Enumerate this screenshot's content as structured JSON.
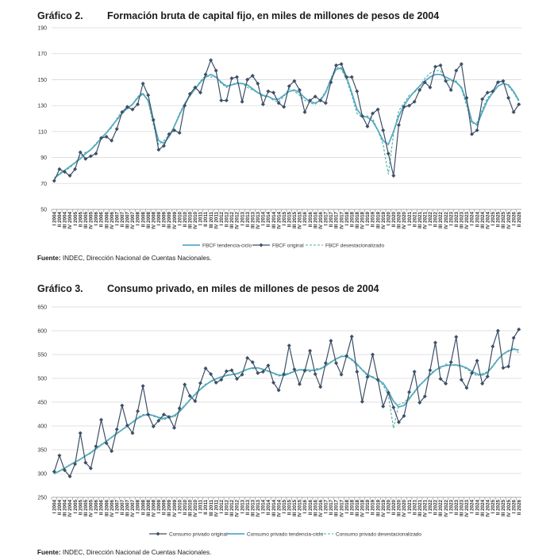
{
  "chart1": {
    "number": "Gráfico 2.",
    "title": "Formación bruta de capital fijo, en miles de millones de pesos de 2004",
    "source_label": "Fuente:",
    "source_text": " INDEC, Dirección Nacional de Cuentas Nacionales."
  },
  "chart2": {
    "number": "Gráfico 3.",
    "title": "Consumo privado, en miles de millones de pesos de 2004",
    "source_label": "Fuente:",
    "source_text": " INDEC, Dirección Nacional de Cuentas Nacionales."
  },
  "colors": {
    "original": "#3d4f66",
    "trend": "#5aa9cc",
    "seasonal": "#49b09a",
    "grid": "#d9d9d9"
  },
  "chart_data": [
    {
      "type": "line",
      "title": "Formación bruta de capital fijo, en miles de millones de pesos de 2004",
      "ylim": [
        50,
        190
      ],
      "yticks": [
        50,
        70,
        90,
        110,
        130,
        150,
        170,
        190
      ],
      "grid": true,
      "legend_position": "bottom",
      "categories": [
        "I 2004",
        "II 2004",
        "III 2004",
        "IV 2004",
        "I 2005",
        "II 2005",
        "III 2005",
        "IV 2005",
        "I 2006",
        "II 2006",
        "III 2006",
        "IV 2006",
        "I 2007",
        "II 2007",
        "III 2007",
        "IV 2007",
        "I 2008",
        "II 2008",
        "III 2008",
        "IV 2008",
        "I 2009",
        "II 2009",
        "III 2009",
        "IV 2009",
        "I 2010",
        "II 2010",
        "III 2010",
        "IV 2010",
        "I 2011",
        "II 2011",
        "III 2011",
        "IV 2011",
        "I 2012",
        "II 2012",
        "III 2012",
        "IV 2012",
        "I 2013",
        "II 2013",
        "III 2013",
        "IV 2013",
        "I 2014",
        "II 2014",
        "III 2014",
        "IV 2014",
        "I 2015",
        "II 2015",
        "III 2015",
        "IV 2015",
        "I 2016",
        "II 2016",
        "III 2016",
        "IV 2016",
        "I 2017",
        "II 2017",
        "III 2017",
        "IV 2017",
        "I 2018",
        "II 2018",
        "III 2018",
        "IV 2018",
        "I 2019",
        "II 2019",
        "III 2019",
        "IV 2019",
        "I 2020",
        "II 2020",
        "III 2020",
        "IV 2020",
        "I 2021",
        "II 2021",
        "III 2021",
        "IV 2021",
        "I 2022",
        "II 2022",
        "III 2022",
        "IV 2022",
        "I 2023",
        "II 2023",
        "III 2023",
        "IV 2023",
        "I 2024",
        "II 2024",
        "III 2024",
        "IV 2024",
        "I 2025",
        "II 2025",
        "III 2025",
        "IV 2025",
        "I 2026",
        "II 2026"
      ],
      "series": [
        {
          "name": "FBCF tendencia-ciclo",
          "style": "trend",
          "values": [
            74,
            77,
            80,
            83,
            86,
            89,
            93,
            96,
            100,
            105,
            109,
            114,
            119,
            124,
            128,
            131,
            136,
            139,
            134,
            118,
            103,
            101,
            106,
            114,
            123,
            131,
            138,
            143,
            148,
            152,
            154,
            152,
            148,
            145,
            146,
            147,
            147,
            146,
            143,
            140,
            138,
            137,
            135,
            135,
            138,
            141,
            142,
            140,
            136,
            133,
            132,
            134,
            140,
            150,
            158,
            159,
            152,
            140,
            127,
            122,
            121,
            118,
            111,
            103,
            100,
            110,
            122,
            130,
            136,
            141,
            145,
            149,
            152,
            154,
            154,
            152,
            150,
            148,
            144,
            133,
            118,
            115,
            125,
            134,
            140,
            145,
            147,
            146,
            141,
            134
          ]
        },
        {
          "name": "FBCF original",
          "style": "original",
          "values": [
            72,
            81,
            79,
            76,
            81,
            94,
            89,
            91,
            93,
            105,
            106,
            103,
            112,
            125,
            129,
            127,
            131,
            147,
            138,
            119,
            96,
            99,
            108,
            111,
            109,
            130,
            139,
            144,
            140,
            154,
            165,
            157,
            134,
            134,
            151,
            152,
            133,
            150,
            153,
            147,
            131,
            141,
            140,
            132,
            129,
            145,
            149,
            142,
            125,
            134,
            137,
            134,
            132,
            148,
            161,
            162,
            152,
            152,
            141,
            122,
            114,
            124,
            127,
            111,
            93,
            76,
            115,
            129,
            130,
            133,
            142,
            148,
            144,
            160,
            161,
            149,
            142,
            157,
            162,
            136,
            108,
            111,
            135,
            140,
            141,
            148,
            149,
            136,
            125,
            131
          ]
        },
        {
          "name": "FBCF desestacionalizado",
          "style": "seasonal",
          "values": [
            74,
            78,
            80,
            82,
            86,
            91,
            94,
            96,
            101,
            104,
            109,
            113,
            120,
            126,
            127,
            131,
            137,
            140,
            133,
            115,
            100,
            103,
            107,
            114,
            124,
            132,
            137,
            143,
            149,
            153,
            152,
            152,
            147,
            144,
            146,
            148,
            147,
            144,
            142,
            140,
            137,
            137,
            134,
            133,
            137,
            143,
            141,
            138,
            134,
            132,
            131,
            135,
            141,
            151,
            160,
            158,
            150,
            138,
            124,
            121,
            122,
            120,
            111,
            100,
            77,
            108,
            126,
            132,
            138,
            140,
            145,
            151,
            155,
            157,
            157,
            150,
            149,
            149,
            143,
            130,
            116,
            117,
            127,
            136,
            140,
            149,
            148,
            145,
            140,
            133
          ]
        }
      ]
    },
    {
      "type": "line",
      "title": "Consumo privado, en miles de millones de pesos de 2004",
      "ylim": [
        250,
        650
      ],
      "yticks": [
        250,
        300,
        350,
        400,
        450,
        500,
        550,
        600,
        650
      ],
      "grid": true,
      "legend_position": "bottom",
      "categories": [
        "I 2004",
        "II 2004",
        "III 2004",
        "IV 2004",
        "I 2005",
        "II 2005",
        "III 2005",
        "IV 2005",
        "I 2006",
        "II 2006",
        "III 2006",
        "IV 2006",
        "I 2007",
        "II 2007",
        "III 2007",
        "IV 2007",
        "I 2008",
        "II 2008",
        "III 2008",
        "IV 2008",
        "I 2009",
        "II 2009",
        "III 2009",
        "IV 2009",
        "I 2010",
        "II 2010",
        "III 2010",
        "IV 2010",
        "I 2011",
        "II 2011",
        "III 2011",
        "IV 2011",
        "I 2012",
        "II 2012",
        "III 2012",
        "IV 2012",
        "I 2013",
        "II 2013",
        "III 2013",
        "IV 2013",
        "I 2014",
        "II 2014",
        "III 2014",
        "IV 2014",
        "I 2015",
        "II 2015",
        "III 2015",
        "IV 2015",
        "I 2016",
        "II 2016",
        "III 2016",
        "IV 2016",
        "I 2017",
        "II 2017",
        "III 2017",
        "IV 2017",
        "I 2018",
        "II 2018",
        "III 2018",
        "IV 2018",
        "I 2019",
        "II 2019",
        "III 2019",
        "IV 2019",
        "I 2020",
        "II 2020",
        "III 2020",
        "IV 2020",
        "I 2021",
        "II 2021",
        "III 2021",
        "IV 2021",
        "I 2022",
        "II 2022",
        "III 2022",
        "IV 2022",
        "I 2023",
        "II 2023",
        "III 2023",
        "IV 2023",
        "I 2024",
        "II 2024",
        "III 2024",
        "IV 2024",
        "I 2025",
        "II 2025",
        "III 2025",
        "IV 2025",
        "I 2026",
        "II 2026"
      ],
      "series": [
        {
          "name": "Consumo privado original",
          "style": "original",
          "values": [
            304,
            338,
            307,
            294,
            320,
            385,
            323,
            311,
            357,
            413,
            364,
            347,
            393,
            443,
            401,
            385,
            431,
            484,
            424,
            399,
            411,
            424,
            419,
            396,
            437,
            487,
            463,
            452,
            490,
            521,
            509,
            491,
            497,
            515,
            517,
            499,
            508,
            543,
            534,
            511,
            514,
            527,
            491,
            475,
            509,
            569,
            519,
            488,
            516,
            558,
            509,
            482,
            532,
            579,
            532,
            508,
            547,
            588,
            514,
            451,
            503,
            550,
            497,
            441,
            470,
            439,
            408,
            421,
            471,
            514,
            449,
            462,
            517,
            575,
            499,
            489,
            534,
            587,
            497,
            480,
            511,
            537,
            489,
            504,
            567,
            600,
            522,
            525,
            585,
            603
          ]
        },
        {
          "name": "Consumo privado tendencia-ciclo",
          "style": "trend",
          "values": [
            300,
            305,
            311,
            318,
            324,
            330,
            337,
            344,
            352,
            360,
            368,
            376,
            384,
            392,
            400,
            408,
            416,
            422,
            424,
            422,
            418,
            416,
            418,
            422,
            430,
            442,
            455,
            466,
            477,
            486,
            494,
            499,
            503,
            506,
            508,
            510,
            514,
            519,
            522,
            522,
            519,
            515,
            511,
            507,
            506,
            510,
            515,
            518,
            518,
            517,
            517,
            520,
            526,
            534,
            541,
            546,
            546,
            540,
            530,
            518,
            508,
            502,
            497,
            490,
            473,
            452,
            440,
            443,
            457,
            472,
            485,
            496,
            507,
            517,
            524,
            527,
            528,
            528,
            526,
            522,
            515,
            509,
            507,
            512,
            525,
            540,
            551,
            558,
            561,
            560
          ]
        },
        {
          "name": "Consumo privado desestacionalizado",
          "style": "seasonal",
          "values": [
            299,
            306,
            312,
            317,
            325,
            330,
            338,
            342,
            354,
            361,
            367,
            375,
            386,
            391,
            402,
            406,
            418,
            424,
            425,
            420,
            417,
            412,
            420,
            418,
            432,
            444,
            454,
            468,
            478,
            488,
            492,
            499,
            503,
            507,
            508,
            508,
            515,
            520,
            520,
            522,
            519,
            516,
            510,
            505,
            507,
            512,
            514,
            518,
            518,
            514,
            520,
            521,
            527,
            535,
            540,
            547,
            547,
            538,
            528,
            517,
            505,
            504,
            496,
            486,
            465,
            395,
            445,
            449,
            460,
            470,
            487,
            495,
            510,
            518,
            521,
            530,
            528,
            527,
            525,
            520,
            512,
            505,
            510,
            514,
            527,
            541,
            552,
            556,
            565,
            553
          ]
        }
      ]
    }
  ]
}
